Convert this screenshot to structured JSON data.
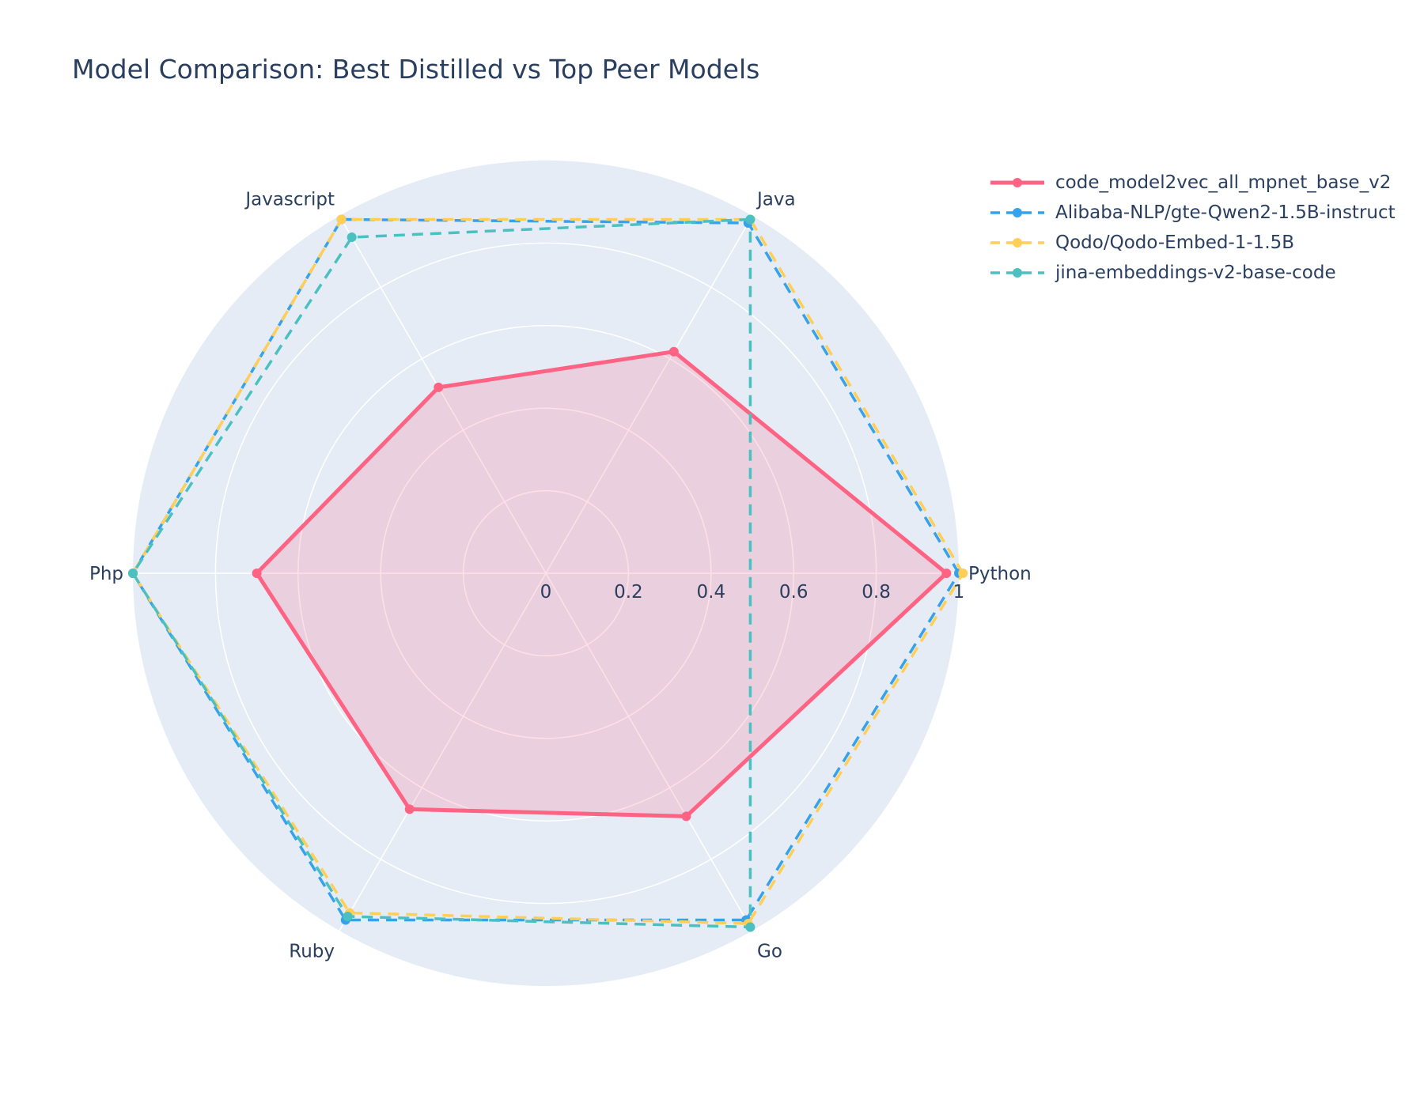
{
  "chart_data": {
    "type": "radar",
    "title": "Model Comparison: Best Distilled vs Top Peer Models",
    "categories": [
      "Python",
      "Java",
      "Javascript",
      "Php",
      "Ruby",
      "Go"
    ],
    "radial_range": [
      0,
      1
    ],
    "radial_ticks": [
      {
        "value": 0,
        "label": "0"
      },
      {
        "value": 0.2,
        "label": "0.2"
      },
      {
        "value": 0.4,
        "label": "0.4"
      },
      {
        "value": 0.6,
        "label": "0.6"
      },
      {
        "value": 0.8,
        "label": "0.8"
      },
      {
        "value": 1,
        "label": "1"
      }
    ],
    "grid": true,
    "legend_position": "top-right",
    "background_color": "#e5ecf6",
    "series": [
      {
        "name": "code_model2vec_all_mpnet_base_v2",
        "color": "#ff6384",
        "dash": "solid",
        "fill": true,
        "values": [
          0.97,
          0.62,
          0.52,
          0.7,
          0.66,
          0.68
        ]
      },
      {
        "name": "Alibaba-NLP/gte-Qwen2-1.5B-instruct",
        "color": "#36a2eb",
        "dash": "dash",
        "fill": false,
        "values": [
          1.0,
          0.98,
          0.99,
          1.0,
          0.97,
          0.97
        ]
      },
      {
        "name": "Qodo/Qodo-Embed-1-1.5B",
        "color": "#ffce56",
        "dash": "dash",
        "fill": false,
        "values": [
          1.01,
          0.99,
          0.99,
          1.0,
          0.95,
          0.98
        ]
      },
      {
        "name": "jina-embeddings-v2-base-code",
        "color": "#4bc0c0",
        "dash": "dash",
        "fill": false,
        "values": [
          null,
          0.99,
          0.94,
          1.0,
          0.96,
          0.99
        ]
      }
    ]
  }
}
